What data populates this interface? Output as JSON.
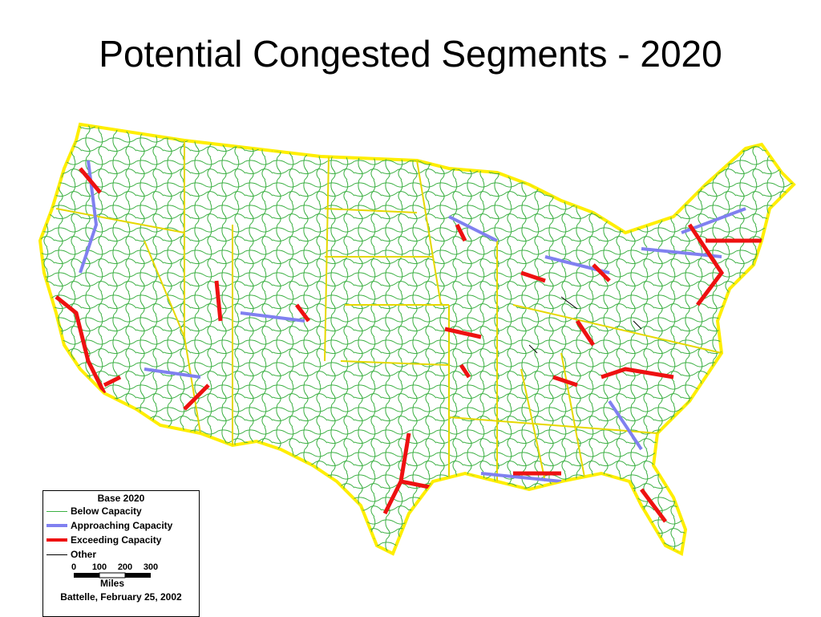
{
  "header": {
    "title": "Potential Congested Segments - 2020"
  },
  "legend": {
    "title": "Base 2020",
    "items": [
      {
        "label": "Below Capacity",
        "color": "#3cb043"
      },
      {
        "label": "Approaching Capacity",
        "color": "#8080f0"
      },
      {
        "label": "Exceeding Capacity",
        "color": "#ee1111"
      },
      {
        "label": "Other",
        "color": "#000000"
      }
    ],
    "scale": {
      "ticks": [
        "0",
        "100",
        "200",
        "300"
      ],
      "unit": "Miles"
    },
    "credit": "Battelle, February 25, 2002"
  }
}
